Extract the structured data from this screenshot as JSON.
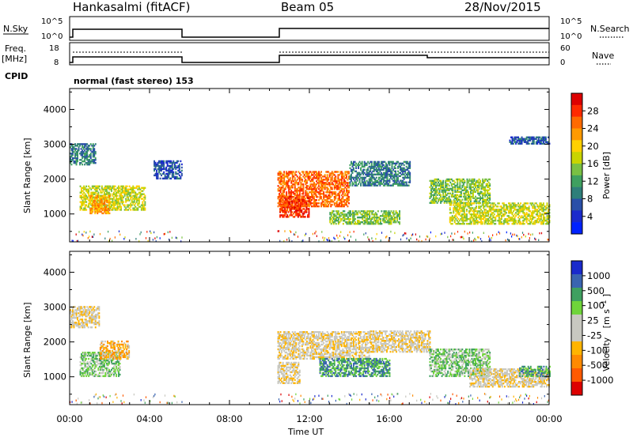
{
  "header": {
    "station": "Hankasalmi (fitACF)",
    "beam": "Beam 05",
    "date": "28/Nov/2015"
  },
  "strips": {
    "nsky": {
      "label": "N.Sky",
      "ticks": [
        "10^5",
        "10^0"
      ],
      "right_label": "N.Search",
      "right_ticks": [
        "10^5",
        "10^0"
      ]
    },
    "freq": {
      "label_line1": "Freq.",
      "label_line2": "[MHz]",
      "ticks": [
        "18",
        "8"
      ],
      "right_label": "Nave",
      "right_ticks": [
        "60",
        "0"
      ]
    },
    "cpid": {
      "label": "CPID",
      "text": "normal (fast stereo) 153"
    }
  },
  "time_axis": {
    "label": "Time UT",
    "ticks": [
      "00:00",
      "04:00",
      "08:00",
      "12:00",
      "16:00",
      "20:00",
      "00:00"
    ]
  },
  "chart_data": [
    {
      "type": "heatmap",
      "ylabel": "Slant Range [km]",
      "yticks": [
        1000,
        2000,
        3000,
        4000
      ],
      "ylim": [
        200,
        4600
      ],
      "xlim_hours": [
        0,
        24
      ],
      "colorbar": {
        "label": "Power [dB]",
        "ticks": [
          "28",
          "24",
          "20",
          "16",
          "12",
          "8",
          "4"
        ],
        "colors": [
          "#dd0000",
          "#ff2a00",
          "#ff6a00",
          "#ff9a00",
          "#ffd000",
          "#c9d400",
          "#7ac043",
          "#3fa060",
          "#2f7f7a",
          "#2a4fa8",
          "#1a2acc",
          "#0022ff"
        ]
      },
      "data_gap_hours": [
        5.6,
        10.4
      ],
      "regions": [
        {
          "t0": 0.0,
          "t1": 1.3,
          "r0": 2400,
          "r1": 3000,
          "level": 3
        },
        {
          "t0": 0.5,
          "t1": 3.8,
          "r0": 1100,
          "r1": 1800,
          "level": 6
        },
        {
          "t0": 1.0,
          "t1": 2.0,
          "r0": 1000,
          "r1": 1500,
          "level": 8
        },
        {
          "t0": 4.2,
          "t1": 5.6,
          "r0": 2000,
          "r1": 2500,
          "level": 2
        },
        {
          "t0": 10.4,
          "t1": 14.0,
          "r0": 1200,
          "r1": 2200,
          "level": 9
        },
        {
          "t0": 10.5,
          "t1": 12.0,
          "r0": 900,
          "r1": 1500,
          "level": 10
        },
        {
          "t0": 13.0,
          "t1": 16.5,
          "r0": 700,
          "r1": 1100,
          "level": 5
        },
        {
          "t0": 14.0,
          "t1": 17.0,
          "r0": 1800,
          "r1": 2500,
          "level": 3
        },
        {
          "t0": 18.0,
          "t1": 21.0,
          "r0": 1300,
          "r1": 2000,
          "level": 5
        },
        {
          "t0": 19.0,
          "t1": 24.0,
          "r0": 700,
          "r1": 1300,
          "level": 6
        },
        {
          "t0": 22.0,
          "t1": 24.0,
          "r0": 3000,
          "r1": 3200,
          "level": 2
        }
      ]
    },
    {
      "type": "heatmap",
      "ylabel": "Slant Range [km]",
      "yticks": [
        1000,
        2000,
        3000,
        4000
      ],
      "ylim": [
        200,
        4600
      ],
      "xlim_hours": [
        0,
        24
      ],
      "colorbar": {
        "label_main": "Velocity",
        "label_unit": "[m s",
        "label_exp": "-1",
        "label_close": "]",
        "ticks": [
          "1000",
          "500",
          "100",
          "25",
          "-25",
          "-100",
          "-500",
          "-1000"
        ],
        "colors": [
          "#1a2acc",
          "#3a64b0",
          "#3fa060",
          "#6fd43a",
          "#c8c8c0",
          "#c8c8c0",
          "#ffb400",
          "#ff8a00",
          "#ff5a00",
          "#dd0000"
        ]
      },
      "data_gap_hours": [
        5.6,
        10.4
      ],
      "regions": [
        {
          "t0": 0.0,
          "t1": 1.5,
          "r0": 2400,
          "r1": 3000,
          "level": 4
        },
        {
          "t0": 0.5,
          "t1": 2.5,
          "r0": 1000,
          "r1": 1700,
          "level": 6
        },
        {
          "t0": 1.5,
          "t1": 3.0,
          "r0": 1500,
          "r1": 2000,
          "level": 3
        },
        {
          "t0": 10.4,
          "t1": 15.0,
          "r0": 1500,
          "r1": 2300,
          "level": 4
        },
        {
          "t0": 10.4,
          "t1": 11.5,
          "r0": 800,
          "r1": 1400,
          "level": 4
        },
        {
          "t0": 12.5,
          "t1": 16.0,
          "r0": 1000,
          "r1": 1500,
          "level": 7
        },
        {
          "t0": 15.0,
          "t1": 18.0,
          "r0": 1700,
          "r1": 2300,
          "level": 4
        },
        {
          "t0": 18.0,
          "t1": 21.0,
          "r0": 1000,
          "r1": 1800,
          "level": 6
        },
        {
          "t0": 20.0,
          "t1": 24.0,
          "r0": 700,
          "r1": 1200,
          "level": 4
        },
        {
          "t0": 22.5,
          "t1": 24.0,
          "r0": 1000,
          "r1": 1300,
          "level": 7
        }
      ]
    }
  ]
}
